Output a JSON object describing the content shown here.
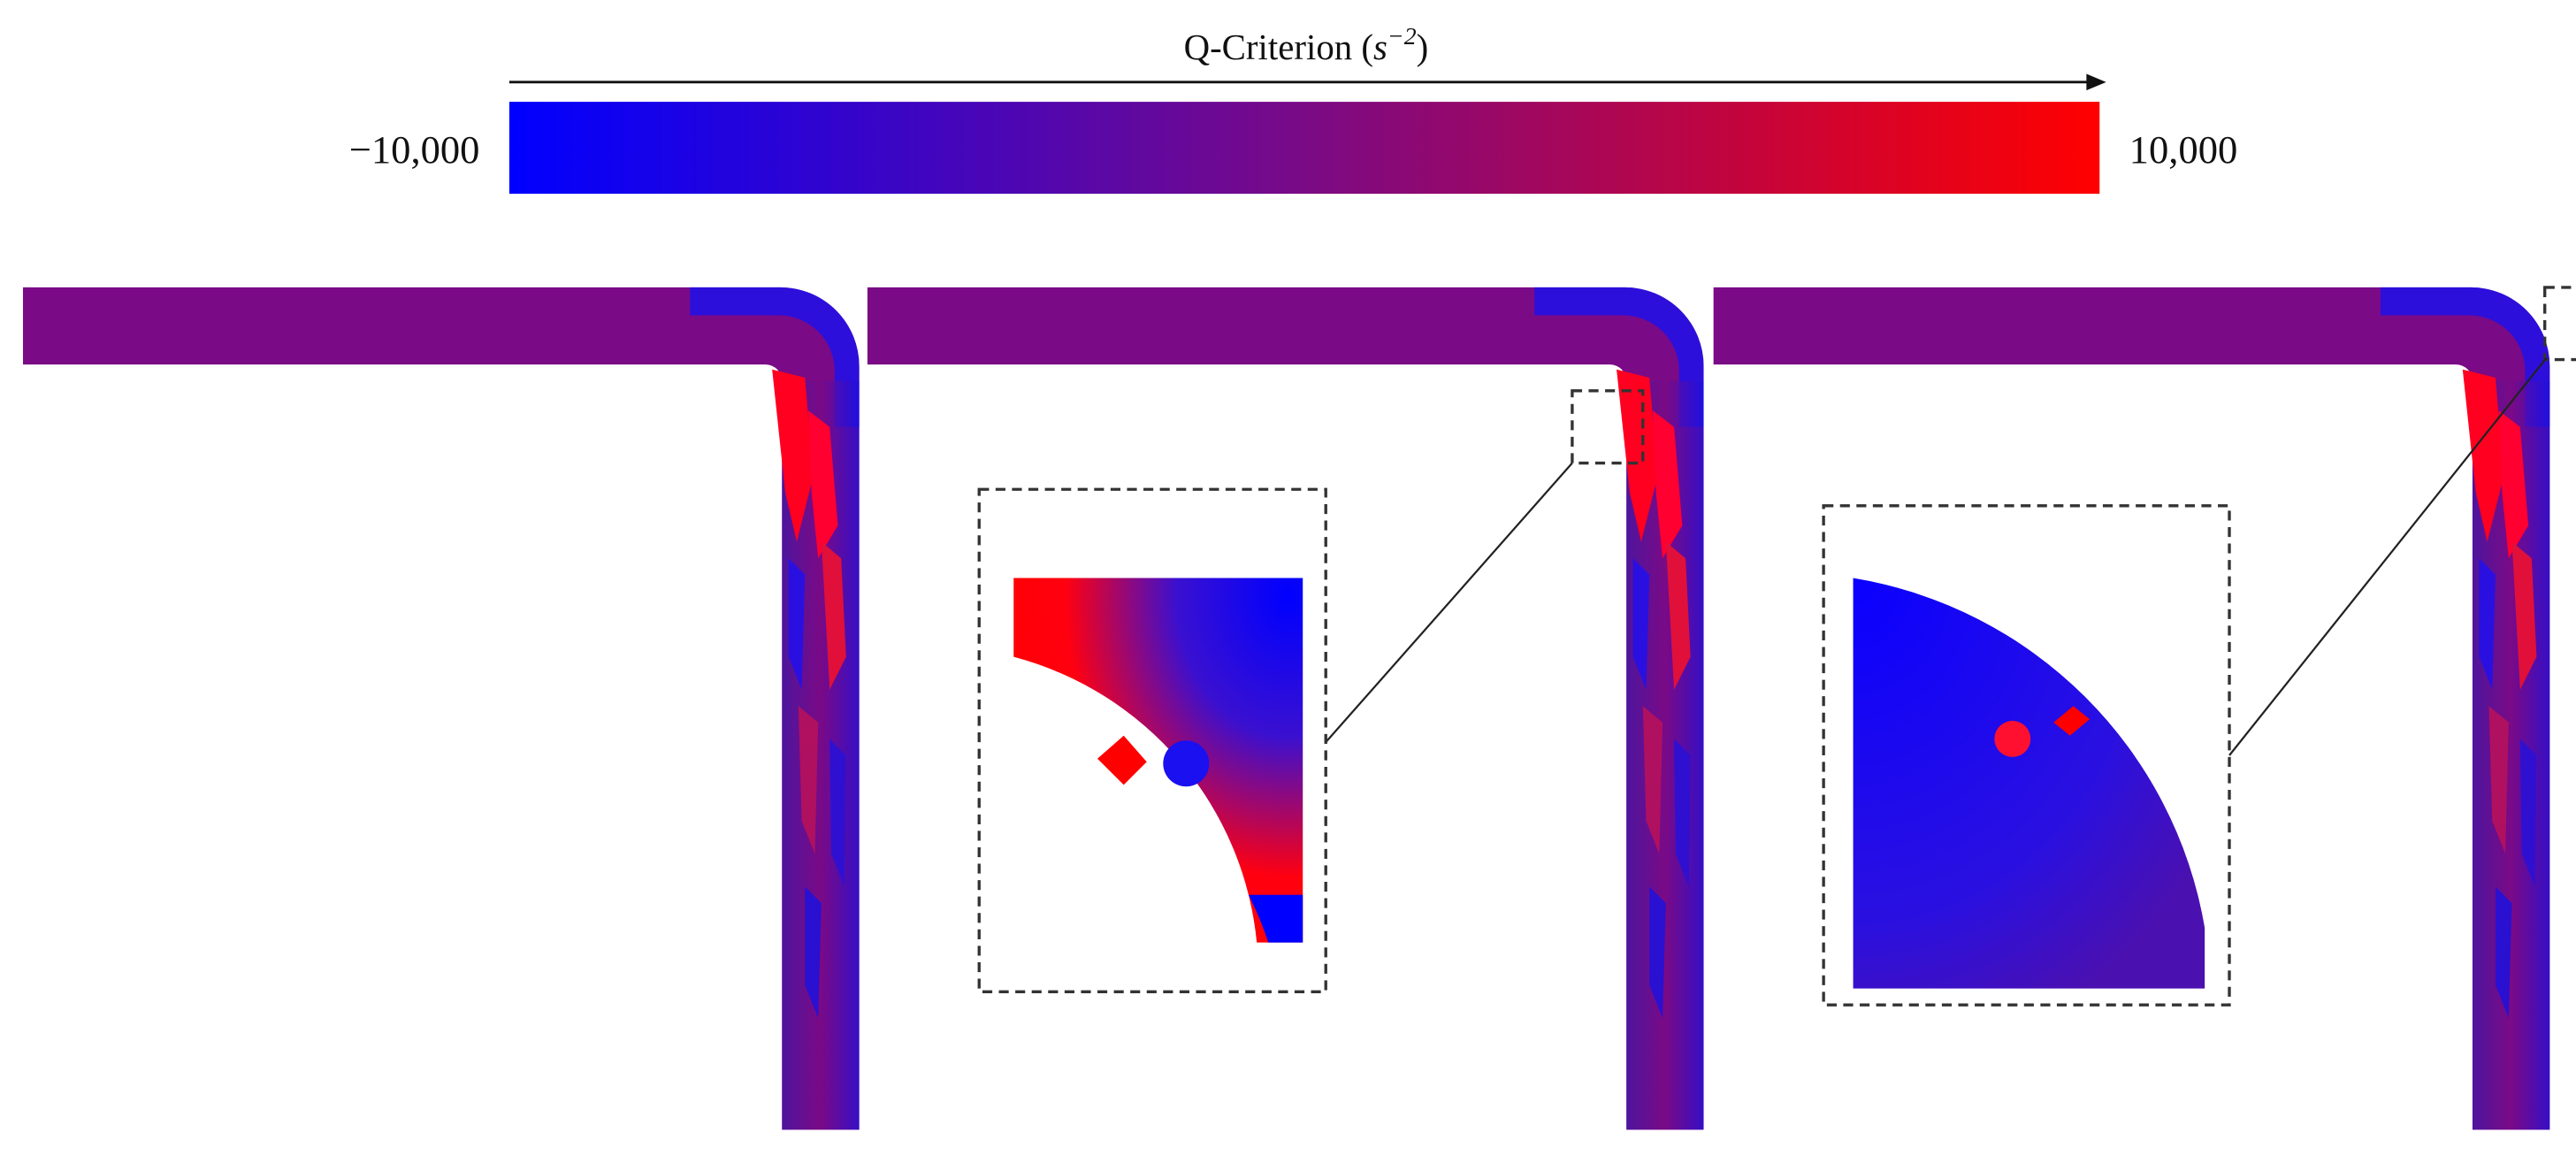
{
  "colorbar": {
    "title_prefix": "Q-Criterion (",
    "unit_symbol": "s",
    "unit_exponent": "−2",
    "title_suffix": ")",
    "min": {
      "value": -10000,
      "label": "−10,000"
    },
    "max": {
      "value": 10000,
      "label": "10,000"
    },
    "min_color": "#0000ff",
    "mid_color": "#7a0a86",
    "max_color": "#ff0000"
  }
}
